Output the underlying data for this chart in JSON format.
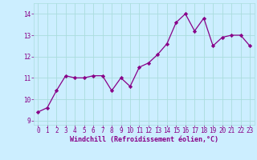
{
  "x": [
    0,
    1,
    2,
    3,
    4,
    5,
    6,
    7,
    8,
    9,
    10,
    11,
    12,
    13,
    14,
    15,
    16,
    17,
    18,
    19,
    20,
    21,
    22,
    23
  ],
  "y": [
    9.4,
    9.6,
    10.4,
    11.1,
    11.0,
    11.0,
    11.1,
    11.1,
    10.4,
    11.0,
    10.6,
    11.5,
    11.7,
    12.1,
    12.6,
    13.6,
    14.0,
    13.2,
    13.8,
    12.5,
    12.9,
    13.0,
    13.0,
    12.5
  ],
  "line_color": "#880088",
  "marker": "D",
  "marker_size": 2.2,
  "bg_color": "#cceeff",
  "grid_color": "#aadddd",
  "xlabel": "Windchill (Refroidissement éolien,°C)",
  "ylim": [
    8.8,
    14.5
  ],
  "xlim": [
    -0.5,
    23.5
  ],
  "yticks": [
    9,
    10,
    11,
    12,
    13,
    14
  ],
  "xticks": [
    0,
    1,
    2,
    3,
    4,
    5,
    6,
    7,
    8,
    9,
    10,
    11,
    12,
    13,
    14,
    15,
    16,
    17,
    18,
    19,
    20,
    21,
    22,
    23
  ],
  "tick_color": "#880088",
  "label_color": "#880088",
  "line_width": 0.9,
  "tick_fontsize": 5.5,
  "xlabel_fontsize": 6.0
}
